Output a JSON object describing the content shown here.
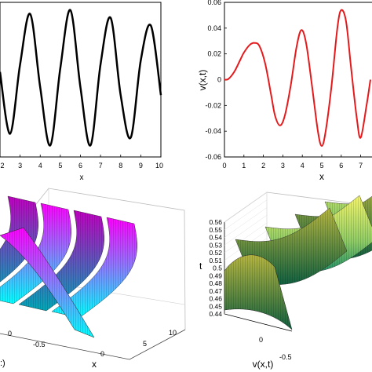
{
  "chart_data": [
    {
      "panel": "top-left",
      "type": "line",
      "title": "",
      "xlabel": "x",
      "ylabel": "",
      "xlim": [
        2,
        10
      ],
      "ylim": [
        -1,
        1
      ],
      "xticks": [
        "2",
        "3",
        "4",
        "5",
        "6",
        "7",
        "8",
        "9",
        "10"
      ],
      "series": [
        {
          "color": "#000000",
          "x": [
            2,
            2.5,
            3,
            3.5,
            4,
            4.5,
            5,
            5.5,
            6,
            6.5,
            7,
            7.5,
            8,
            8.5,
            9,
            9.5,
            10
          ],
          "y": [
            0.1,
            -0.7,
            0.2,
            0.85,
            -0.1,
            -0.85,
            0.15,
            0.9,
            -0.1,
            -0.85,
            0.2,
            0.8,
            -0.2,
            -0.75,
            0.25,
            0.7,
            -0.2
          ]
        }
      ]
    },
    {
      "panel": "top-right",
      "type": "line",
      "title": "",
      "xlabel": "x",
      "ylabel": "v(x,t)",
      "xlim": [
        0,
        7.5
      ],
      "ylim": [
        -0.06,
        0.06
      ],
      "xticks": [
        "0",
        "1",
        "2",
        "3",
        "4",
        "5",
        "6",
        "7"
      ],
      "yticks": [
        "-0.06",
        "-0.04",
        "-0.02",
        "0",
        "0.02",
        "0.04",
        "0.06"
      ],
      "series": [
        {
          "color": "#e41a1c",
          "x": [
            0,
            0.2,
            0.5,
            0.8,
            1.0,
            1.3,
            1.55,
            1.8,
            2.1,
            2.4,
            2.6,
            2.85,
            3.1,
            3.4,
            3.7,
            3.95,
            4.2,
            4.5,
            4.8,
            5.0,
            5.2,
            5.5,
            5.8,
            6.0,
            6.25,
            6.5,
            6.8,
            7.0,
            7.3,
            7.5
          ],
          "y": [
            0,
            0.0005,
            0.006,
            0.015,
            0.021,
            0.027,
            0.0285,
            0.026,
            0.012,
            -0.012,
            -0.028,
            -0.0355,
            -0.028,
            -0.005,
            0.025,
            0.0385,
            0.028,
            -0.005,
            -0.04,
            -0.0515,
            -0.04,
            -0.005,
            0.04,
            0.054,
            0.045,
            0.01,
            -0.03,
            -0.045,
            -0.02,
            0.0
          ]
        }
      ]
    },
    {
      "panel": "bottom-left",
      "type": "surface",
      "title": "",
      "xlabel": "x",
      "ylabel": "",
      "zlabel": "",
      "xticks": [
        "0",
        "5",
        "10"
      ],
      "yticks": [
        "0",
        "-0.5"
      ],
      "colormap": "cool",
      "colors": [
        "#ff00ff",
        "#00ffff"
      ]
    },
    {
      "panel": "bottom-right",
      "type": "surface",
      "title": "",
      "xlabel": "v(x,t)",
      "ylabel": "t",
      "zticks": [
        "0.44",
        "0.45",
        "0.46",
        "0.47",
        "0.48",
        "0.49",
        "0.5",
        "0.51",
        "0.52",
        "0.53",
        "0.54",
        "0.55",
        "0.56"
      ],
      "xticks": [
        "0",
        "-0.5"
      ],
      "colormap": "summer",
      "colors": [
        "#ffff66",
        "#008066"
      ]
    }
  ]
}
